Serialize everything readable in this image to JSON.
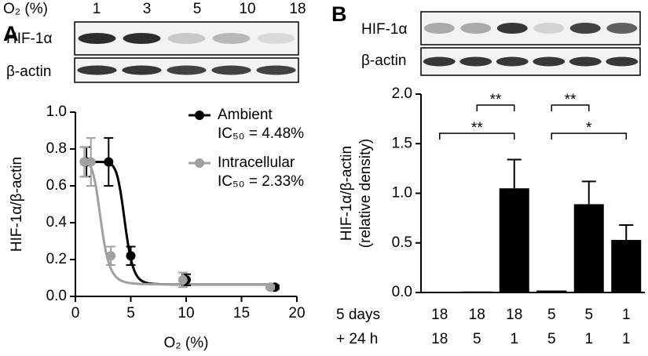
{
  "chart_data": [
    {
      "type": "scatter",
      "panel_label": "A",
      "blot": {
        "header": "O₂ (%)",
        "lanes": [
          "1",
          "3",
          "5",
          "10",
          "18"
        ],
        "rows": [
          "HIF-1α",
          "β-actin"
        ]
      },
      "xlabel": "O₂ (%)",
      "ylabel": "HIF-1α/β-actin",
      "xlim": [
        0,
        20
      ],
      "xticks": [
        0,
        5,
        10,
        15,
        20
      ],
      "ylim": [
        0,
        1
      ],
      "yticks": [
        {
          "value": 0,
          "label": "0.0"
        },
        0.2,
        0.4,
        0.6,
        0.8,
        {
          "value": 1,
          "label": "1.0"
        }
      ],
      "series": [
        {
          "name": "Ambient",
          "color": "#000000",
          "x": [
            1,
            3,
            5,
            10,
            18
          ],
          "values": [
            0.73,
            0.73,
            0.22,
            0.09,
            0.05
          ],
          "errors": [
            0.08,
            0.13,
            0.05,
            0.03,
            0.01
          ],
          "fit": {
            "ic50": 4.48,
            "label": "IC₅₀ = 4.48%",
            "top": 0.73,
            "bottom": 0.065,
            "hill": 12
          }
        },
        {
          "name": "Intracellular",
          "color": "#a0a0a0",
          "x": [
            0.8,
            1.4,
            3.2,
            9.7,
            17.6
          ],
          "values": [
            0.73,
            0.73,
            0.22,
            0.09,
            0.05
          ],
          "errors": [
            0.08,
            0.13,
            0.05,
            0.04,
            0.01
          ],
          "fit": {
            "ic50": 2.33,
            "label": "IC₅₀ = 2.33%",
            "top": 0.73,
            "bottom": 0.065,
            "hill": 6
          }
        }
      ]
    },
    {
      "type": "bar",
      "panel_label": "B",
      "blot": {
        "rows": [
          "HIF-1α",
          "β-actin"
        ]
      },
      "ylabel": [
        "HIF-1α/β-actin",
        "(relative density)"
      ],
      "ylim": [
        0,
        2
      ],
      "yticks": [
        {
          "value": 0,
          "label": "0.0"
        },
        0.5,
        {
          "value": 1,
          "label": "1.0"
        },
        1.5,
        {
          "value": 2,
          "label": "2.0"
        }
      ],
      "category_rows": [
        {
          "label": "5 days",
          "values": [
            "18",
            "18",
            "18",
            "5",
            "5",
            "1"
          ]
        },
        {
          "label": "+ 24 h",
          "values": [
            "18",
            "5",
            "1",
            "5",
            "1",
            "1"
          ]
        }
      ],
      "values": [
        0.005,
        0.01,
        1.05,
        0.02,
        0.89,
        0.53
      ],
      "errors": [
        null,
        null,
        0.29,
        null,
        0.23,
        0.15
      ],
      "color": "#000000",
      "significance": [
        {
          "from": 1,
          "to": 2,
          "label": "**"
        },
        {
          "from": 0,
          "to": 2,
          "label": "**"
        },
        {
          "from": 3,
          "to": 4,
          "label": "**"
        },
        {
          "from": 3,
          "to": 5,
          "label": "*"
        }
      ]
    }
  ]
}
